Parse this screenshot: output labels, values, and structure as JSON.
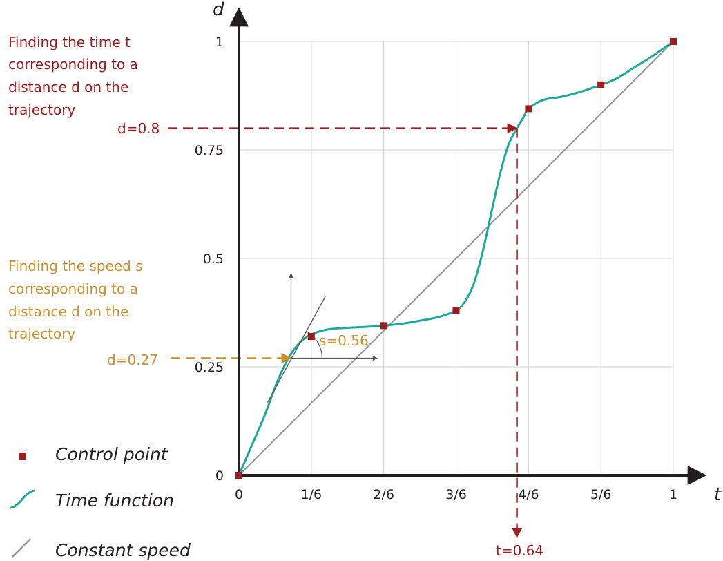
{
  "colors": {
    "axis": "#231f20",
    "grid": "#d1d3d4",
    "curve": "#1ba99a",
    "marker": "#9b1d20",
    "constant": "#939598",
    "distance_annotation": "#9b1d20",
    "speed_annotation": "#c8912d",
    "helper": "#58595b"
  },
  "annotations": {
    "find_time": {
      "lines": [
        "Finding the time t",
        "corresponding to a",
        "distance d on the",
        "trajectory"
      ],
      "d_label": "d=0.8",
      "t_label": "t=0.64"
    },
    "find_speed": {
      "lines": [
        "Finding the speed s",
        "corresponding to a",
        "distance d on the",
        "trajectory"
      ],
      "d_label": "d=0.27",
      "s_label": "s=0.56"
    }
  },
  "legend": {
    "items": [
      {
        "key": "control",
        "label": "Control point"
      },
      {
        "key": "time",
        "label": "Time function"
      },
      {
        "key": "constant",
        "label": "Constant speed"
      }
    ]
  },
  "chart_data": {
    "type": "line",
    "xlabel": "t",
    "ylabel": "d",
    "xlim": [
      0,
      1
    ],
    "ylim": [
      0,
      1
    ],
    "grid": true,
    "xticks": [
      {
        "value": 0,
        "label": "0"
      },
      {
        "value": 0.1667,
        "label": "1/6"
      },
      {
        "value": 0.3333,
        "label": "2/6"
      },
      {
        "value": 0.5,
        "label": "3/6"
      },
      {
        "value": 0.6667,
        "label": "4/6"
      },
      {
        "value": 0.8333,
        "label": "5/6"
      },
      {
        "value": 1,
        "label": "1"
      }
    ],
    "yticks": [
      {
        "value": 0,
        "label": "0"
      },
      {
        "value": 0.25,
        "label": "0.25"
      },
      {
        "value": 0.5,
        "label": "0.5"
      },
      {
        "value": 0.75,
        "label": "0.75"
      },
      {
        "value": 1,
        "label": "1"
      }
    ],
    "series": [
      {
        "name": "Control point",
        "kind": "markers",
        "x": [
          0,
          0.1667,
          0.3333,
          0.5,
          0.6667,
          0.8333,
          1
        ],
        "y": [
          0,
          0.32,
          0.345,
          0.38,
          0.845,
          0.9,
          1
        ]
      },
      {
        "name": "Time function",
        "kind": "curve",
        "x": [
          0,
          0.03,
          0.06,
          0.09,
          0.12,
          0.15,
          0.18,
          0.21,
          0.25,
          0.29,
          0.3333,
          0.38,
          0.42,
          0.46,
          0.5,
          0.52,
          0.54,
          0.56,
          0.58,
          0.6,
          0.62,
          0.64,
          0.655,
          0.6667,
          0.7,
          0.74,
          0.78,
          0.8333,
          0.87,
          0.91,
          0.95,
          1
        ],
        "y": [
          0,
          0.07,
          0.14,
          0.22,
          0.28,
          0.315,
          0.33,
          0.337,
          0.34,
          0.342,
          0.345,
          0.35,
          0.357,
          0.365,
          0.38,
          0.4,
          0.44,
          0.51,
          0.6,
          0.69,
          0.76,
          0.8,
          0.825,
          0.845,
          0.865,
          0.872,
          0.882,
          0.9,
          0.915,
          0.94,
          0.965,
          1
        ]
      },
      {
        "name": "Constant speed",
        "kind": "line",
        "x": [
          0,
          1
        ],
        "y": [
          0,
          1
        ]
      }
    ],
    "markers": {
      "find_time": {
        "d": 0.8,
        "t": 0.64
      },
      "find_speed": {
        "d": 0.27,
        "t": 0.12,
        "s": 0.56
      }
    }
  }
}
